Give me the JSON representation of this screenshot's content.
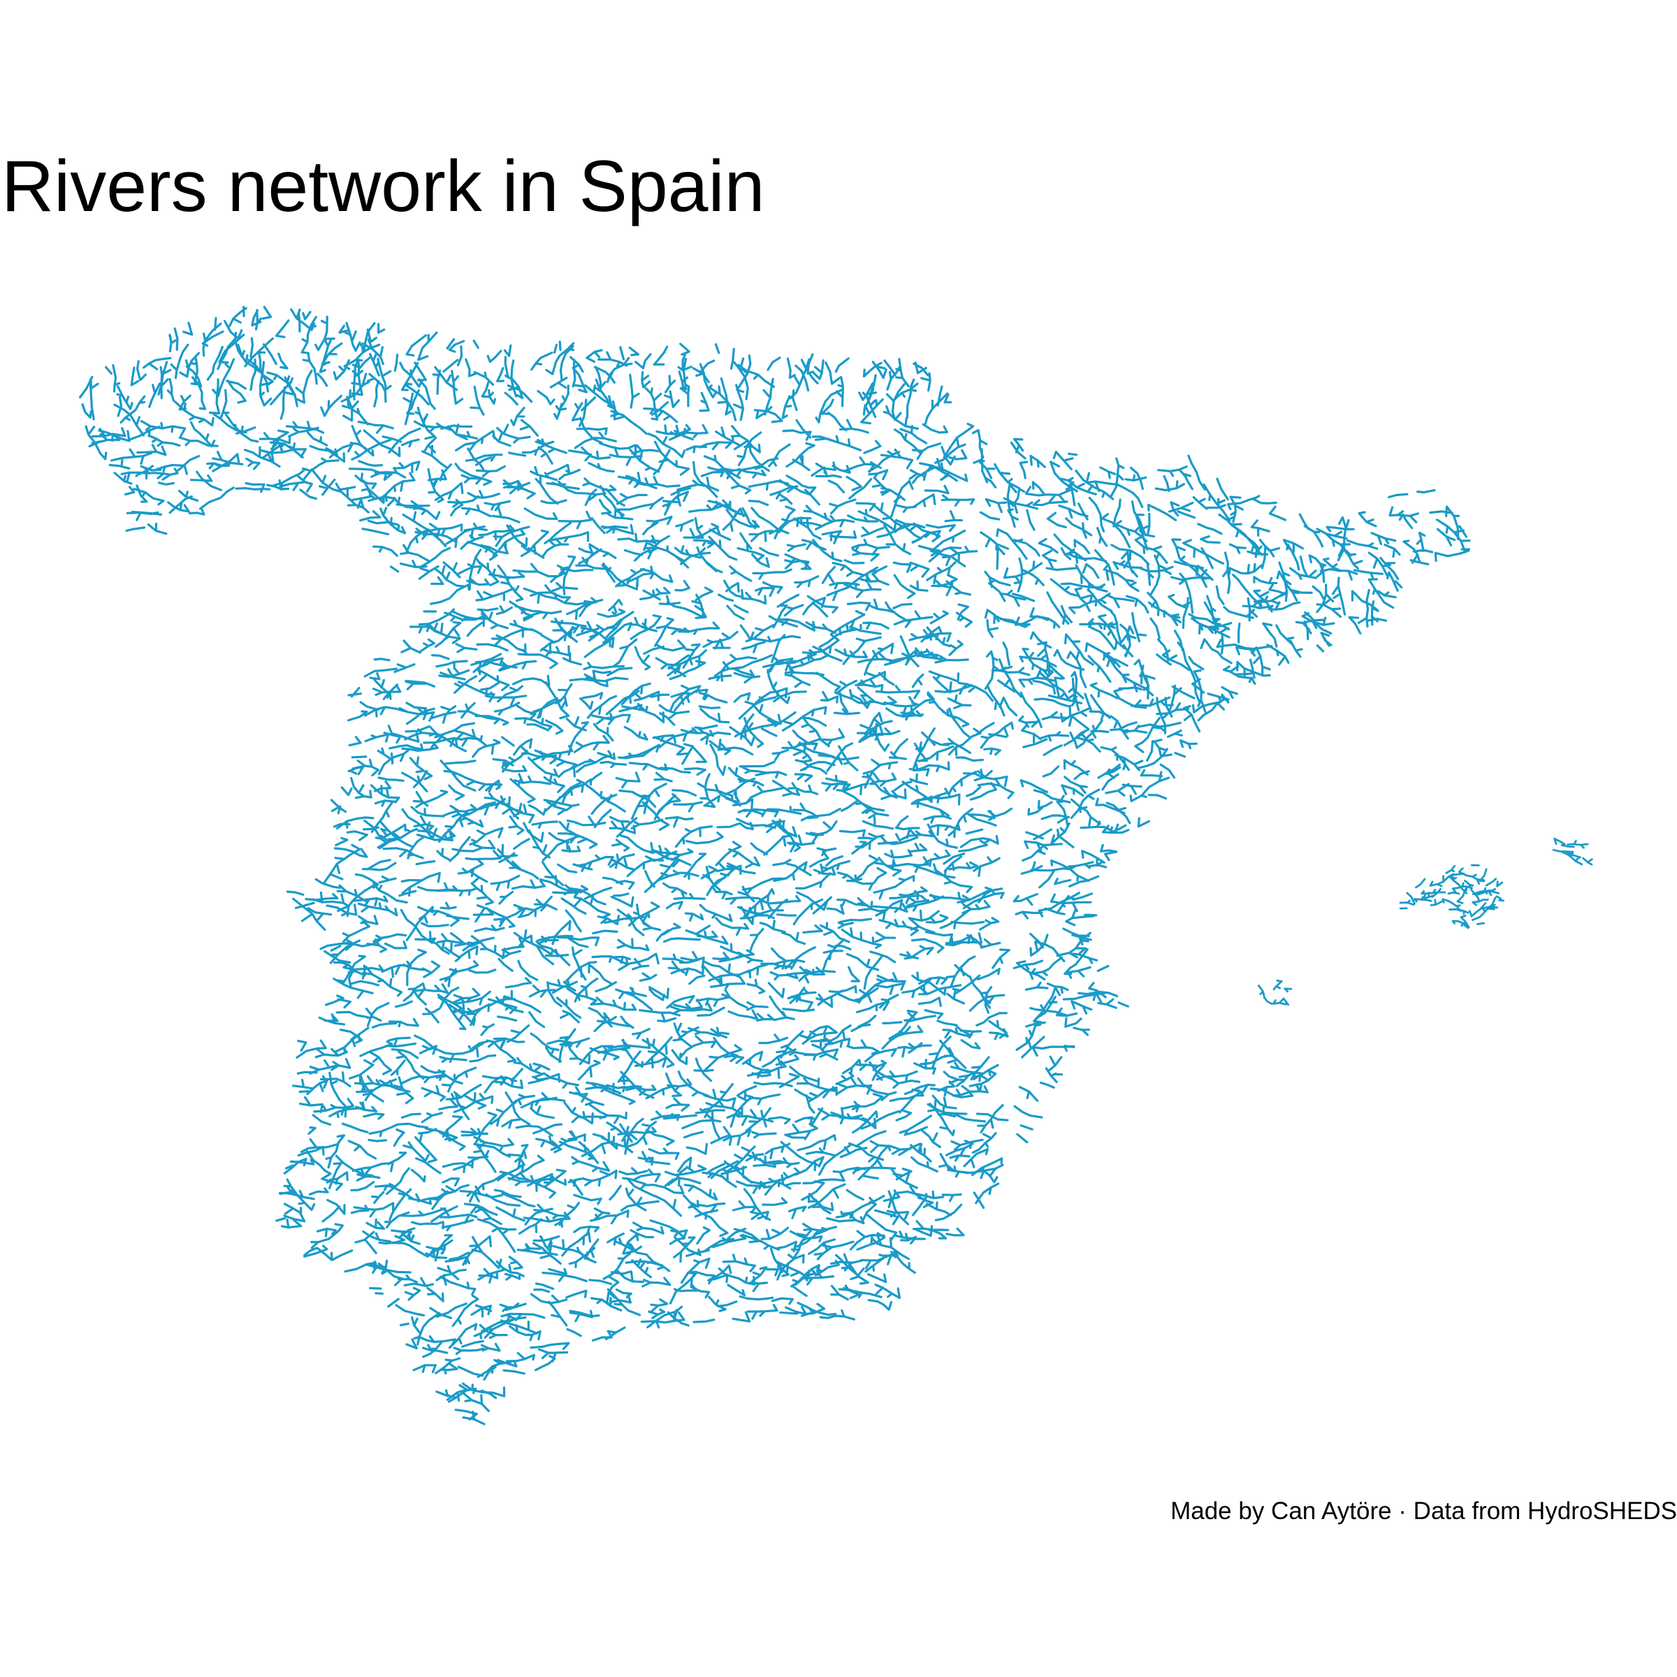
{
  "title": "Rivers network in Spain",
  "caption": "Made by Can Aytöre · Data from HydroSHEDS",
  "colors": {
    "river": "#1a9bc8",
    "background": "#ffffff",
    "text": "#000000"
  },
  "map": {
    "region": "Spain",
    "layer": "river-network",
    "features": [
      "mainland",
      "balearic-islands"
    ]
  }
}
